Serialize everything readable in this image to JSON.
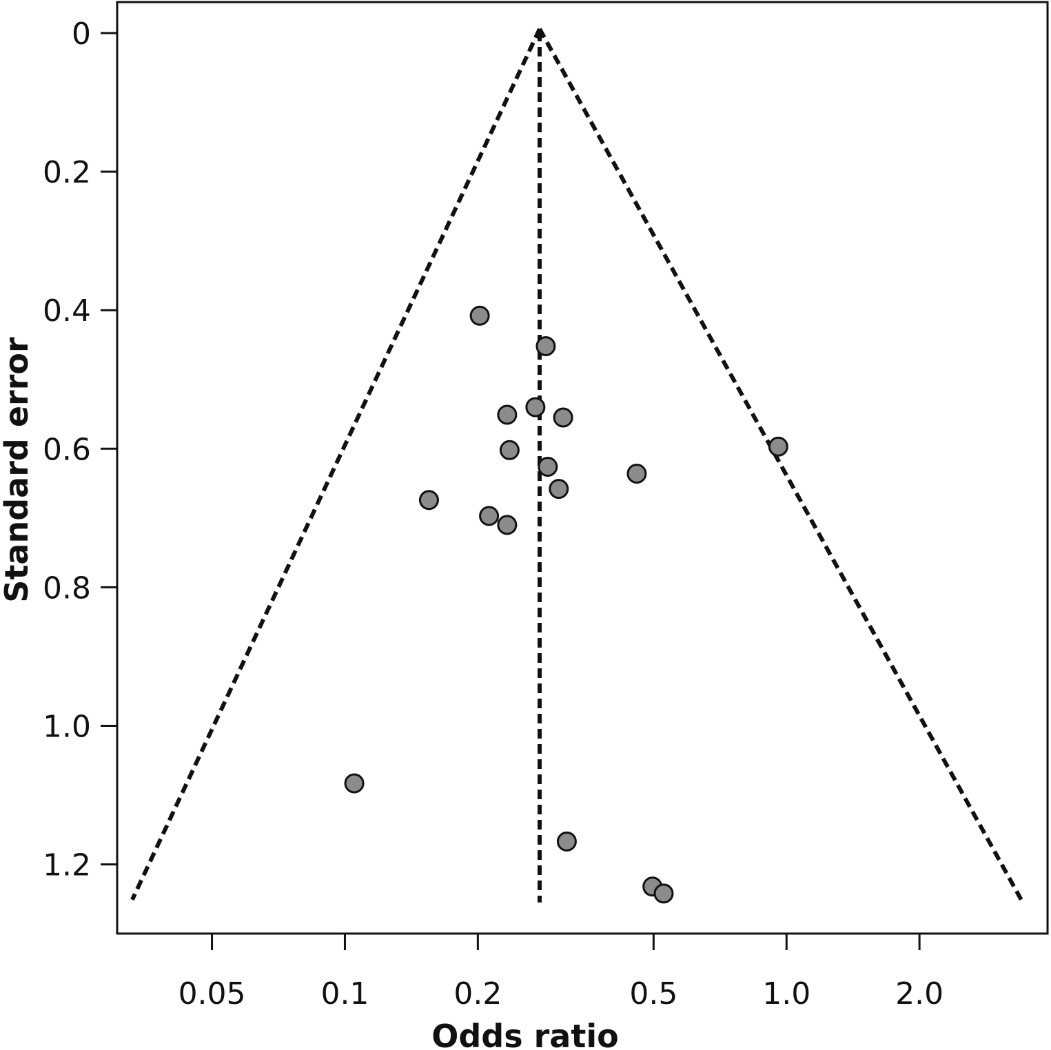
{
  "chart_data": {
    "type": "scatter",
    "subtype": "funnel-plot",
    "title": "",
    "xlabel": "Odds ratio",
    "ylabel": "Standard error",
    "x_scale": "log",
    "y_inverted": true,
    "xlim": [
      0.0305,
      3.9
    ],
    "ylim": [
      0,
      1.29
    ],
    "x_ticks": [
      {
        "value": 0.05,
        "label": "0.05"
      },
      {
        "value": 0.1,
        "label": "0.1"
      },
      {
        "value": 0.2,
        "label": "0.2"
      },
      {
        "value": 0.5,
        "label": "0.5"
      },
      {
        "value": 1.0,
        "label": "1.0"
      },
      {
        "value": 2.0,
        "label": "2.0"
      }
    ],
    "y_ticks": [
      {
        "value": 0,
        "label": "0"
      },
      {
        "value": 0.2,
        "label": "0.2"
      },
      {
        "value": 0.4,
        "label": "0.4"
      },
      {
        "value": 0.6,
        "label": "0.6"
      },
      {
        "value": 0.8,
        "label": "0.8"
      },
      {
        "value": 1.0,
        "label": "1.0"
      },
      {
        "value": 1.2,
        "label": "1.2"
      }
    ],
    "pooled_or": 0.276,
    "funnel_limits": {
      "apex": {
        "x": 0.276,
        "y": 0
      },
      "left_base": {
        "x": 0.033,
        "y": 1.245
      },
      "right_base": {
        "x": 3.4,
        "y": 1.245
      },
      "center_base": {
        "x": 0.276,
        "y": 1.245
      }
    },
    "points": [
      {
        "x": 0.202,
        "y": 0.408
      },
      {
        "x": 0.285,
        "y": 0.452
      },
      {
        "x": 0.27,
        "y": 0.54
      },
      {
        "x": 0.233,
        "y": 0.551
      },
      {
        "x": 0.312,
        "y": 0.555
      },
      {
        "x": 0.236,
        "y": 0.602
      },
      {
        "x": 0.958,
        "y": 0.597
      },
      {
        "x": 0.288,
        "y": 0.626
      },
      {
        "x": 0.458,
        "y": 0.636
      },
      {
        "x": 0.305,
        "y": 0.658
      },
      {
        "x": 0.155,
        "y": 0.674
      },
      {
        "x": 0.212,
        "y": 0.697
      },
      {
        "x": 0.233,
        "y": 0.71
      },
      {
        "x": 0.105,
        "y": 1.083
      },
      {
        "x": 0.318,
        "y": 1.167
      },
      {
        "x": 0.497,
        "y": 1.232
      },
      {
        "x": 0.527,
        "y": 1.242
      }
    ],
    "grid": false,
    "legend": "none"
  },
  "colors": {
    "point_fill": "#8c8c8c",
    "point_stroke": "#111111",
    "line": "#111111",
    "background": "#ffffff"
  }
}
